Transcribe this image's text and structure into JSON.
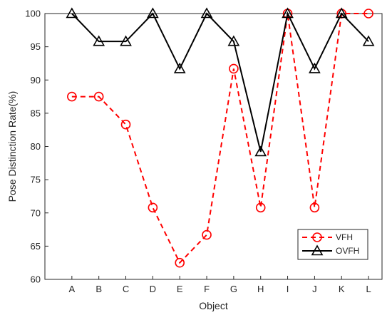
{
  "chart_data": {
    "type": "line",
    "xlabel": "Object",
    "ylabel": "Pose Distinction Rate(%)",
    "categories": [
      "A",
      "B",
      "C",
      "D",
      "E",
      "F",
      "G",
      "H",
      "I",
      "J",
      "K",
      "L"
    ],
    "ylim": [
      60,
      100
    ],
    "yticks": [
      60,
      65,
      70,
      75,
      80,
      85,
      90,
      95,
      100
    ],
    "grid": false,
    "legend_position": "bottom-right",
    "series": [
      {
        "name": "VFH",
        "color": "#ff0000",
        "line_style": "dashed",
        "marker": "circle",
        "values": [
          87.5,
          87.5,
          83.3,
          70.8,
          62.5,
          66.7,
          91.7,
          70.8,
          100,
          70.8,
          100,
          100
        ]
      },
      {
        "name": "OVFH",
        "color": "#000000",
        "line_style": "solid",
        "marker": "triangle",
        "values": [
          100,
          95.8,
          95.8,
          100,
          91.7,
          100,
          95.8,
          79.2,
          100,
          91.7,
          100,
          95.8
        ]
      }
    ]
  }
}
